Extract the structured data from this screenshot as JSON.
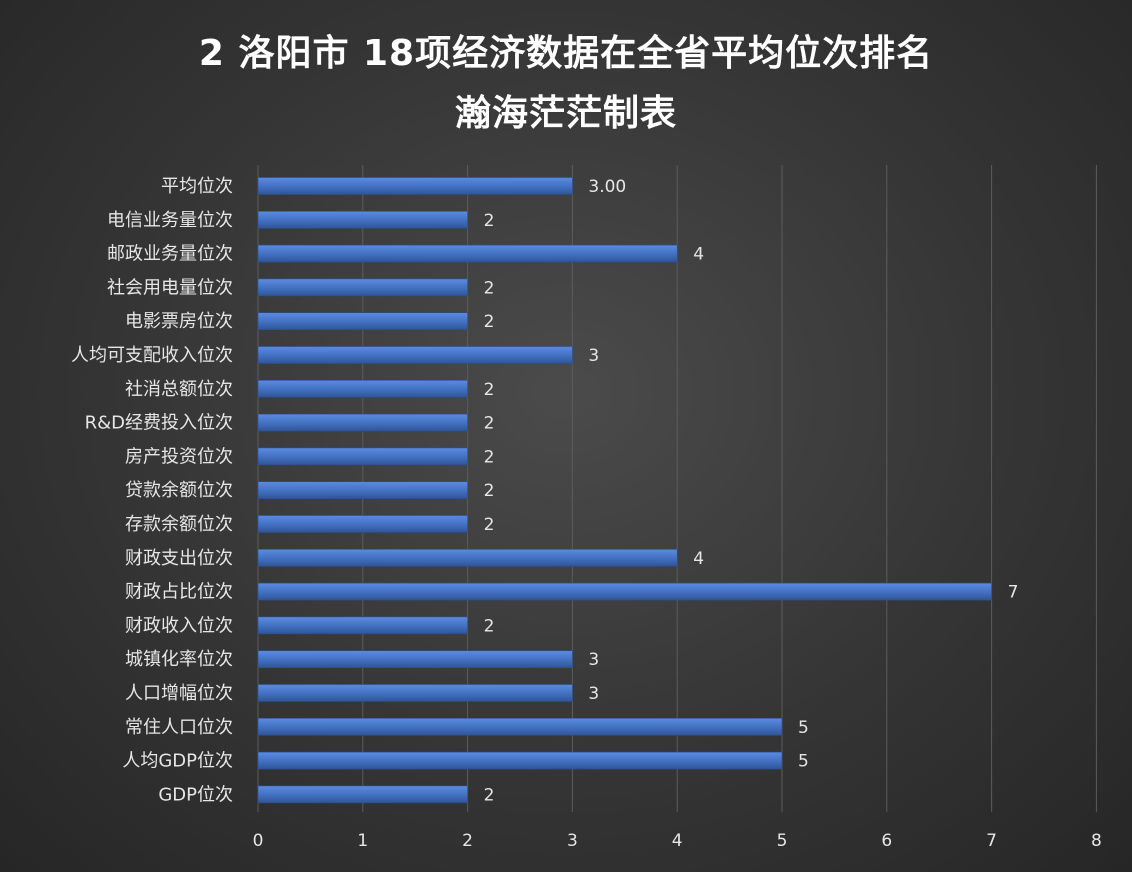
{
  "chart_data": {
    "type": "bar",
    "orientation": "horizontal",
    "title": "2 洛阳市 18项经济数据在全省平均位次排名",
    "subtitle": "瀚海茫茫制表",
    "categories": [
      "平均位次",
      "电信业务量位次",
      "邮政业务量位次",
      "社会用电量位次",
      "电影票房位次",
      "人均可支配收入位次",
      "社消总额位次",
      "R&D经费投入位次",
      "房产投资位次",
      "贷款余额位次",
      "存款余额位次",
      "财政支出位次",
      "财政占比位次",
      "财政收入位次",
      "城镇化率位次",
      "人口增幅位次",
      "常住人口位次",
      "人均GDP位次",
      "GDP位次"
    ],
    "values": [
      3.0,
      2,
      4,
      2,
      2,
      3,
      2,
      2,
      2,
      2,
      2,
      4,
      7,
      2,
      3,
      3,
      5,
      5,
      2
    ],
    "value_labels": [
      "3.00",
      "2",
      "4",
      "2",
      "2",
      "3",
      "2",
      "2",
      "2",
      "2",
      "2",
      "4",
      "7",
      "2",
      "3",
      "3",
      "5",
      "5",
      "2"
    ],
    "xlim": [
      0,
      8
    ],
    "xticks": [
      "0",
      "1",
      "2",
      "3",
      "4",
      "5",
      "6",
      "7",
      "8"
    ],
    "grid": true,
    "bar_color": "#4472c4",
    "background": "#3a3a3a"
  }
}
